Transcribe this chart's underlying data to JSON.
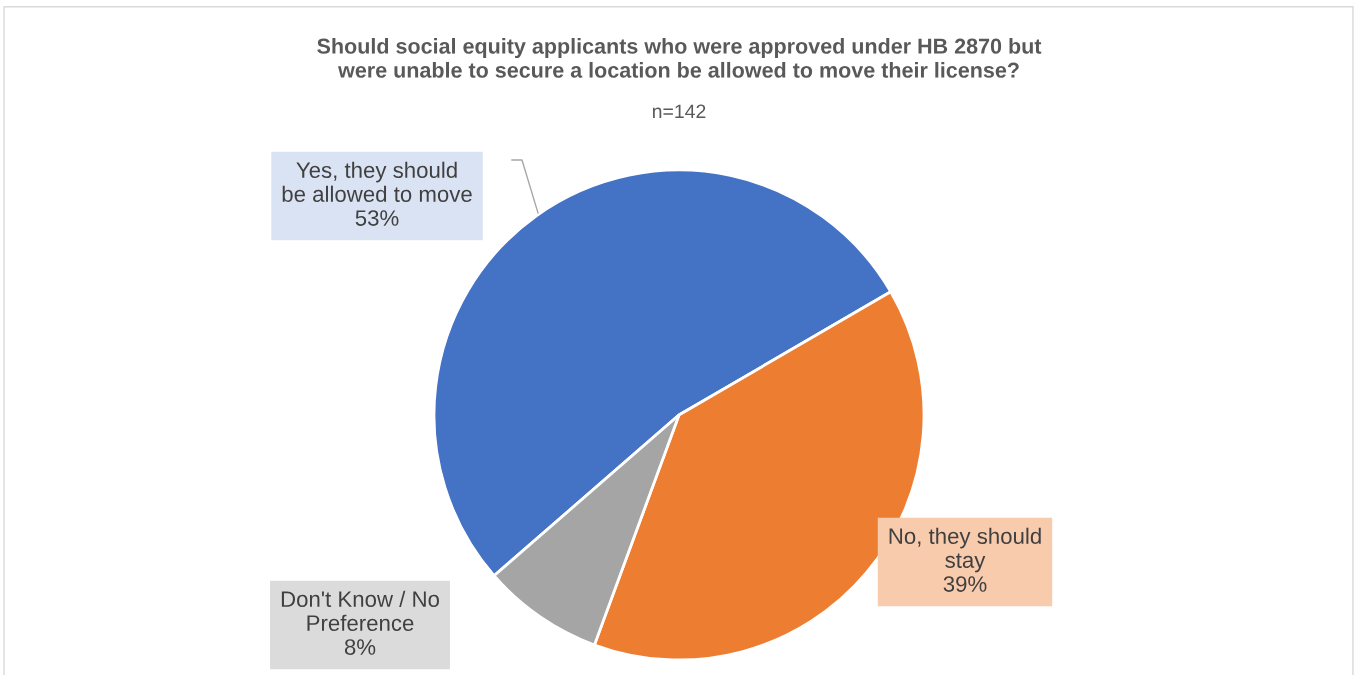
{
  "chart_data": {
    "type": "pie",
    "title": "Should social equity applicants who were approved under HB 2870 but\nwere unable to secure a location be allowed to move their license?",
    "subtitle": "n=142",
    "categories": [
      "Yes, they should\nbe allowed to move",
      "No, they should\nstay",
      "Don't Know / No\nPreference"
    ],
    "values": [
      53,
      39,
      8
    ],
    "colors": [
      "#4472c4",
      "#ed7d31",
      "#a5a5a5"
    ],
    "value_labels": [
      "53%",
      "39%",
      "8%"
    ],
    "legend": false
  }
}
